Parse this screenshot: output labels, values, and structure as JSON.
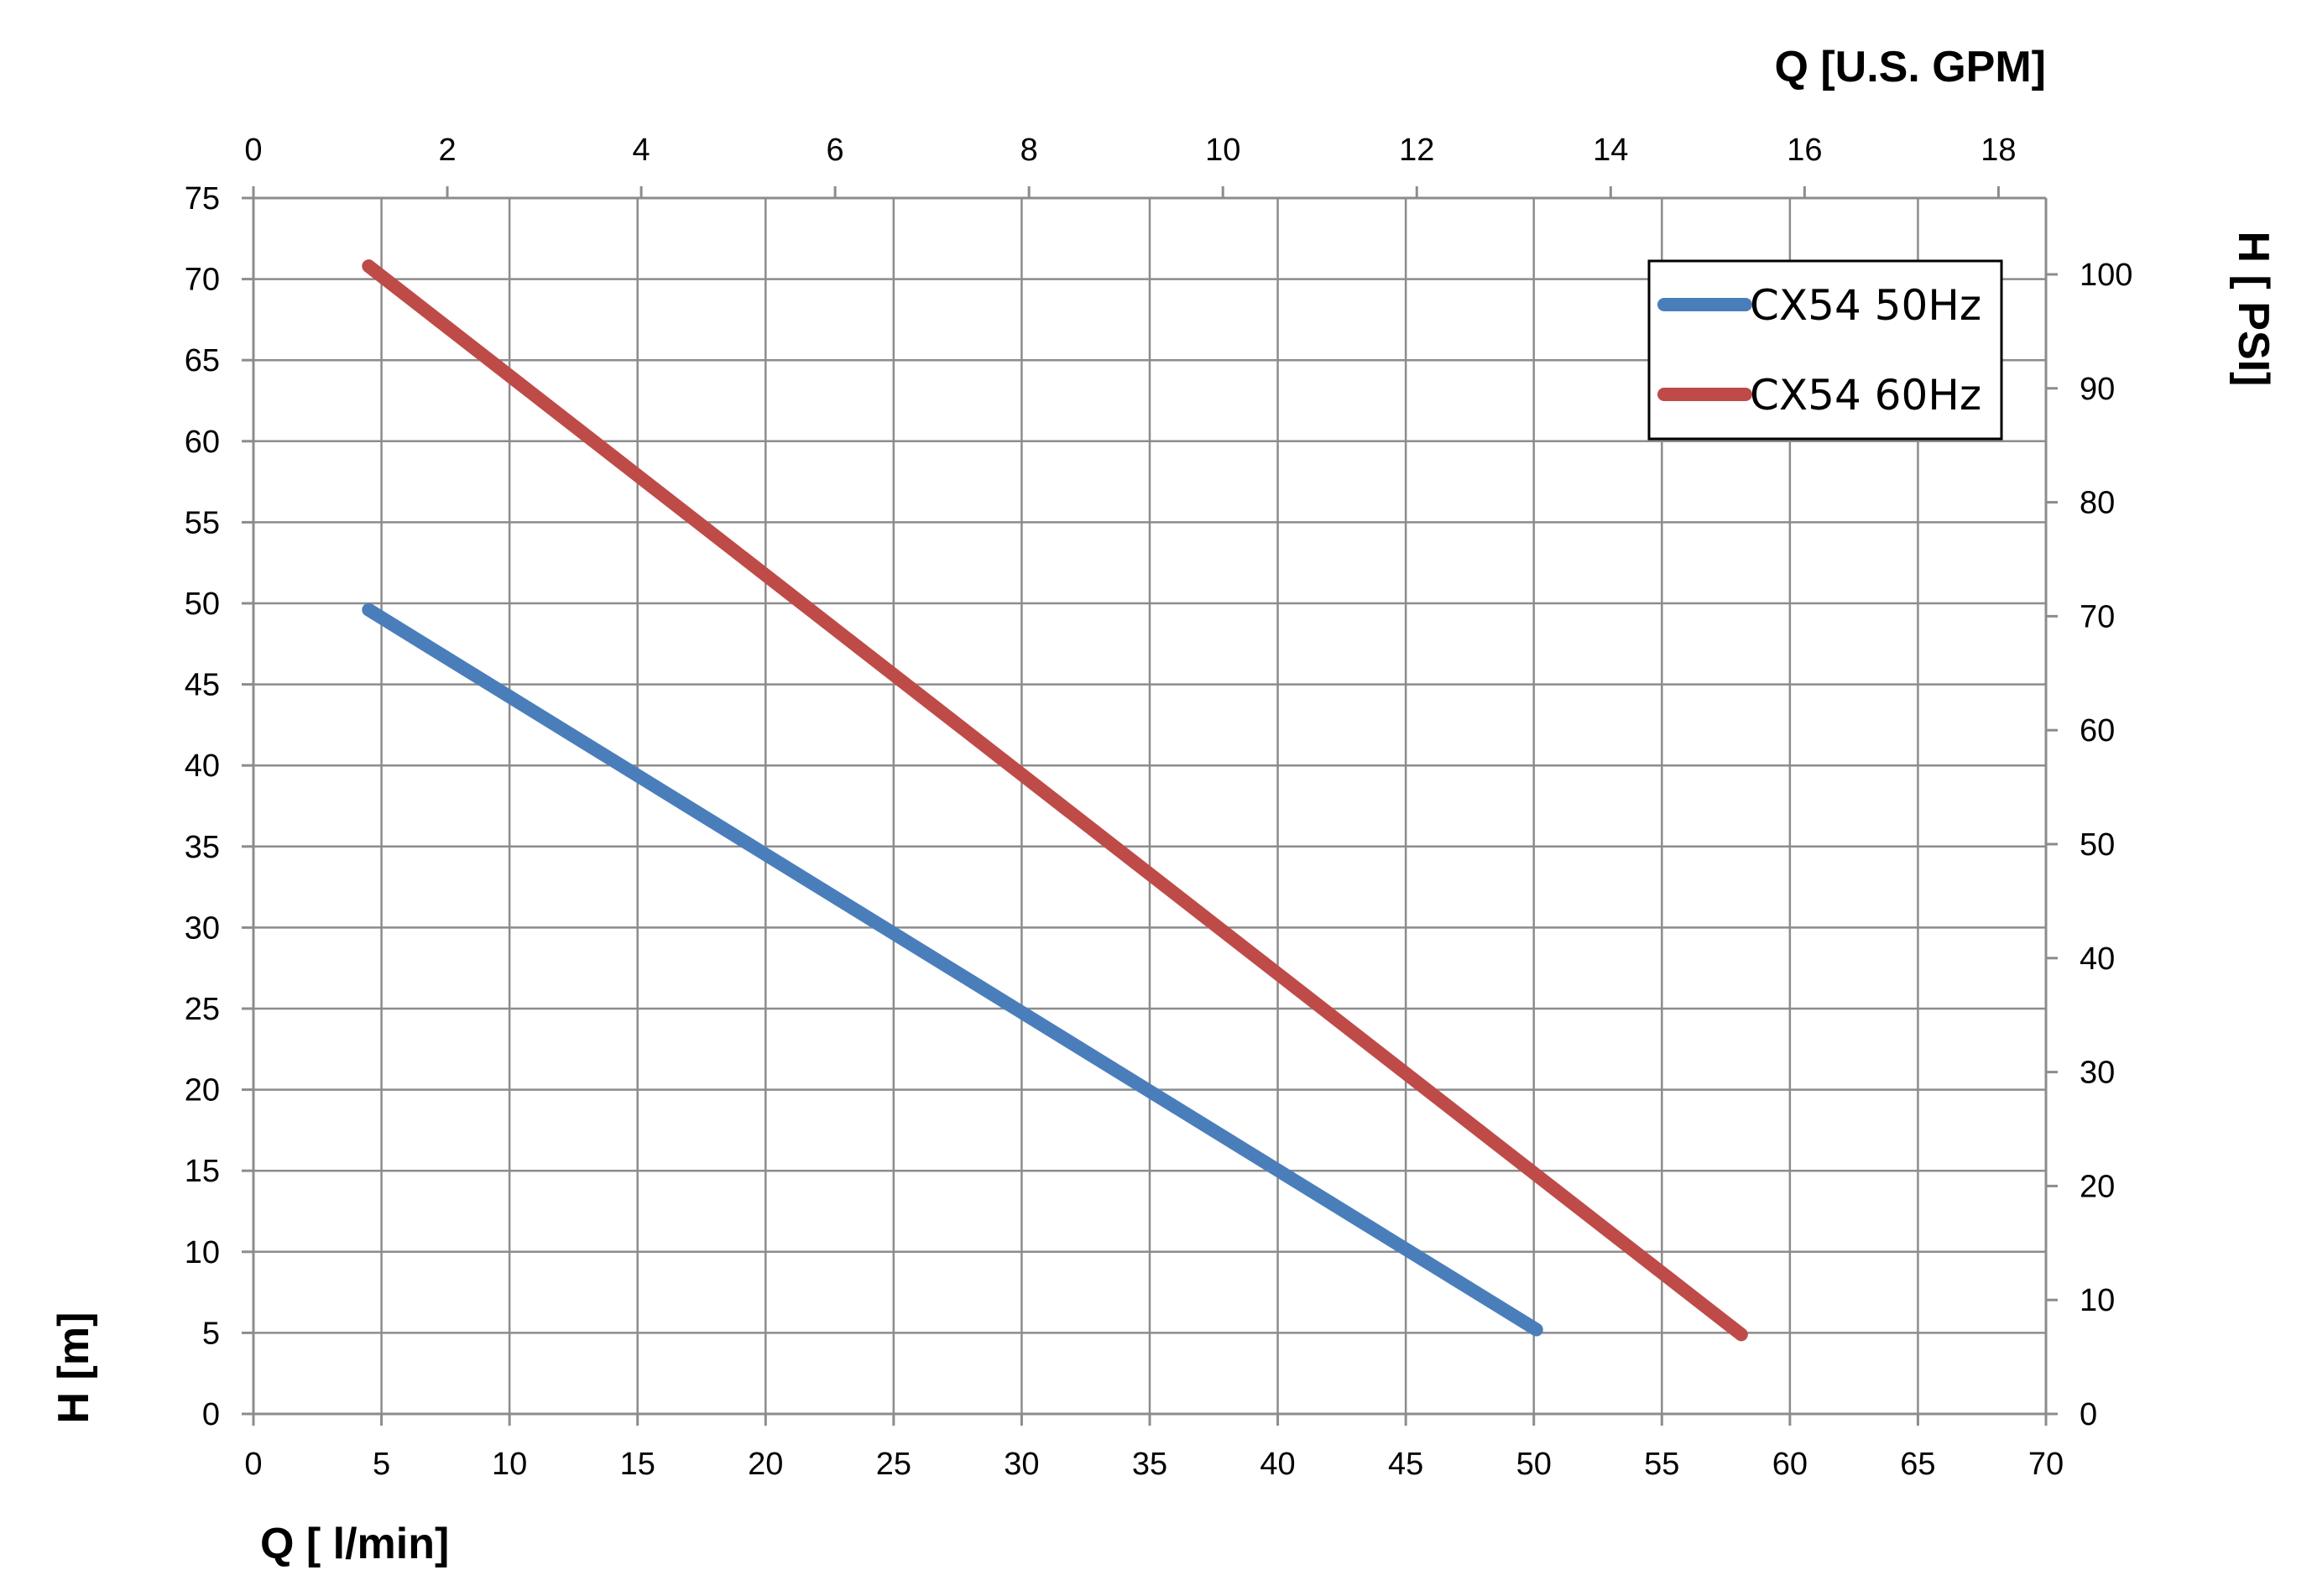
{
  "chart_data": {
    "type": "line",
    "x_bottom": {
      "label": "Q [ l/min]",
      "lim": [
        0,
        70
      ],
      "ticks": [
        "0",
        "5",
        "10",
        "15",
        "20",
        "25",
        "30",
        "35",
        "40",
        "45",
        "50",
        "55",
        "60",
        "65",
        "70"
      ]
    },
    "x_top": {
      "label": "Q  [U.S. GPM]",
      "lim": [
        0,
        18.49
      ],
      "ticks": [
        "0",
        "2",
        "4",
        "6",
        "8",
        "10",
        "12",
        "14",
        "16",
        "18"
      ]
    },
    "y_left": {
      "label": "H [m]",
      "lim": [
        0,
        75
      ],
      "ticks": [
        "0",
        "5",
        "10",
        "15",
        "20",
        "25",
        "30",
        "35",
        "40",
        "45",
        "50",
        "55",
        "60",
        "65",
        "70",
        "75"
      ]
    },
    "y_right": {
      "label": "H [ PSI]",
      "lim": [
        0,
        106.7
      ],
      "ticks": [
        "0",
        "10",
        "20",
        "30",
        "40",
        "50",
        "60",
        "70",
        "80",
        "90",
        "100"
      ]
    },
    "grid": true,
    "legend": {
      "position": "top-right"
    },
    "series": [
      {
        "name": "CX54 50Hz",
        "color": "#4a7ebb",
        "x": [
          4.5,
          50.1
        ],
        "y": [
          49.6,
          5.2
        ]
      },
      {
        "name": "CX54 60Hz",
        "color": "#be4b48",
        "x": [
          4.5,
          58.1
        ],
        "y": [
          70.8,
          4.9
        ]
      }
    ]
  }
}
